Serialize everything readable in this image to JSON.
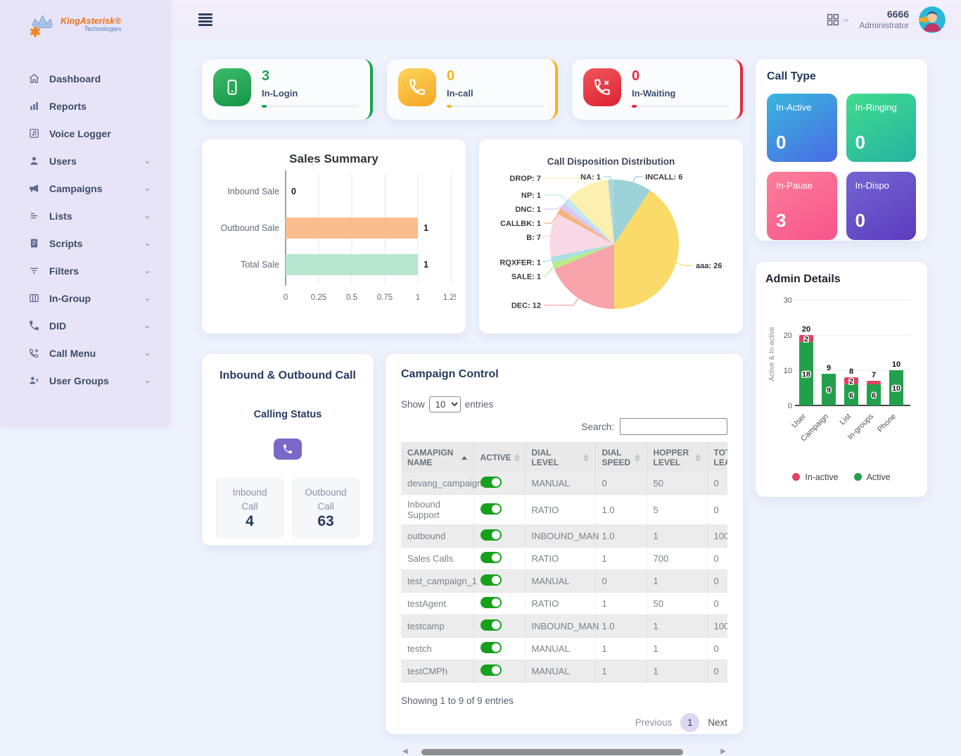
{
  "brand": {
    "name": "KingAsterisk®",
    "sub": "Technologies"
  },
  "topbar": {
    "user_number": "6666",
    "user_role": "Administrator"
  },
  "sidebar": {
    "items": [
      {
        "label": "Dashboard",
        "icon": "home",
        "has_submenu": false
      },
      {
        "label": "Reports",
        "icon": "reports",
        "has_submenu": false
      },
      {
        "label": "Voice Logger",
        "icon": "voice",
        "has_submenu": false
      },
      {
        "label": "Users",
        "icon": "user",
        "has_submenu": true
      },
      {
        "label": "Campaigns",
        "icon": "megaphone",
        "has_submenu": true
      },
      {
        "label": "Lists",
        "icon": "lists",
        "has_submenu": true
      },
      {
        "label": "Scripts",
        "icon": "script",
        "has_submenu": true
      },
      {
        "label": "Filters",
        "icon": "filter",
        "has_submenu": true
      },
      {
        "label": "In-Group",
        "icon": "columns",
        "has_submenu": true
      },
      {
        "label": "DID",
        "icon": "phone",
        "has_submenu": true
      },
      {
        "label": "Call Menu",
        "icon": "phone-out",
        "has_submenu": true
      },
      {
        "label": "User Groups",
        "icon": "user-group",
        "has_submenu": true
      }
    ]
  },
  "stat_cards": [
    {
      "label": "In-Login",
      "value": "3",
      "accent": "#1aa34c",
      "grad_from": "#3dbb6a",
      "grad_to": "#149647",
      "icon": "mobile"
    },
    {
      "label": "In-call",
      "value": "0",
      "accent": "#f2b51e",
      "grad_from": "#fdd45a",
      "grad_to": "#f6a623",
      "icon": "handset"
    },
    {
      "label": "In-Waiting",
      "value": "0",
      "accent": "#e02b3f",
      "grad_from": "#f0545c",
      "grad_to": "#dc2430",
      "icon": "handset-x"
    }
  ],
  "call_type": {
    "title": "Call Type",
    "tiles": [
      {
        "label": "In-Active",
        "value": "0",
        "from": "#38b7dd",
        "to": "#4a6be4"
      },
      {
        "label": "In-Ringing",
        "value": "0",
        "from": "#3fdc8d",
        "to": "#27b2a2"
      },
      {
        "label": "In-Pause",
        "value": "3",
        "from": "#fd7f9a",
        "to": "#f8538b"
      },
      {
        "label": "In-Dispo",
        "value": "0",
        "from": "#7466d2",
        "to": "#5b3cbe"
      }
    ]
  },
  "inbound_outbound": {
    "title": "Inbound & Outbound Call",
    "subtitle": "Calling Status",
    "boxes": [
      {
        "label": "Inbound Call",
        "value": "4"
      },
      {
        "label": "Outbound Call",
        "value": "63"
      }
    ]
  },
  "campaign_control": {
    "title": "Campaign Control",
    "show_label": "Show",
    "page_size": "10",
    "entries_label": "entries",
    "search_label": "Search:",
    "search_value": "",
    "columns": [
      {
        "label": "CAMAPIGN NAME",
        "sorted": "asc"
      },
      {
        "label": "ACTIVE",
        "sorted": "none"
      },
      {
        "label": "DIAL LEVEL",
        "sorted": "none"
      },
      {
        "label": "DIAL SPEED",
        "sorted": "none"
      },
      {
        "label": "HOPPER LEVEL",
        "sorted": "none"
      },
      {
        "label": "TOT LEA",
        "sorted": "none"
      }
    ],
    "rows": [
      {
        "name": "devang_campaign",
        "active": true,
        "dial_level": "MANUAL",
        "dial_speed": "0",
        "hopper_level": "50",
        "total_leads": "0"
      },
      {
        "name": "Inbound Support",
        "active": true,
        "dial_level": "RATIO",
        "dial_speed": "1.0",
        "hopper_level": "5",
        "total_leads": "0"
      },
      {
        "name": "outbound",
        "active": true,
        "dial_level": "INBOUND_MAN",
        "dial_speed": "1.0",
        "hopper_level": "1",
        "total_leads": "100"
      },
      {
        "name": "Sales Calls",
        "active": true,
        "dial_level": "RATIO",
        "dial_speed": "1",
        "hopper_level": "700",
        "total_leads": "0"
      },
      {
        "name": "test_campaign_1",
        "active": true,
        "dial_level": "MANUAL",
        "dial_speed": "0",
        "hopper_level": "1",
        "total_leads": "0"
      },
      {
        "name": "testAgent",
        "active": true,
        "dial_level": "RATIO",
        "dial_speed": "1",
        "hopper_level": "50",
        "total_leads": "0"
      },
      {
        "name": "testcamp",
        "active": true,
        "dial_level": "INBOUND_MAN",
        "dial_speed": "1.0",
        "hopper_level": "1",
        "total_leads": "100"
      },
      {
        "name": "testch",
        "active": true,
        "dial_level": "MANUAL",
        "dial_speed": "1",
        "hopper_level": "1",
        "total_leads": "0"
      },
      {
        "name": "testCMPh",
        "active": true,
        "dial_level": "MANUAL",
        "dial_speed": "1",
        "hopper_level": "1",
        "total_leads": "0"
      }
    ],
    "footer_text": "Showing 1 to 9 of 9 entries",
    "pagination": {
      "previous": "Previous",
      "current": "1",
      "next": "Next"
    }
  },
  "chart_data": [
    {
      "type": "bar",
      "orientation": "horizontal",
      "title": "Sales Summary",
      "categories": [
        "Inbound Sale",
        "Outbound Sale",
        "Total Sale"
      ],
      "values": [
        0,
        1,
        1
      ],
      "bar_colors": [
        "#f9bd90",
        "#f9bd90",
        "#b7e7cf"
      ],
      "data_labels": [
        "0",
        "1",
        "1"
      ],
      "xticks": [
        0,
        0.25,
        0.5,
        0.75,
        1,
        1.25
      ],
      "xlim": [
        0,
        1.25
      ],
      "grid": true
    },
    {
      "type": "pie",
      "title": "Call Disposition Distribution",
      "labels": [
        "NA",
        "INCALL",
        "aaa",
        "DEC",
        "SALE",
        "RQXFER",
        "B",
        "CALLBK",
        "DNC",
        "NP",
        "DROP"
      ],
      "values": [
        1,
        6,
        26,
        12,
        1,
        1,
        7,
        1,
        1,
        1,
        7
      ],
      "colors": [
        "#a9d7da",
        "#9bd2d8",
        "#fada69",
        "#f9a3ab",
        "#b8ec85",
        "#a8dfe4",
        "#fad9e6",
        "#f4b57f",
        "#dcc7f2",
        "#bfe8f2",
        "#fbf0b0"
      ],
      "start_angle_deg": -5.625
    },
    {
      "type": "bar",
      "subtype": "stacked",
      "title": "Admin Details",
      "ylabel": "Active & In-active",
      "categories": [
        "User",
        "Campaign",
        "List",
        "In-groups",
        "Phone"
      ],
      "series": [
        {
          "name": "Active",
          "color": "#22a04b",
          "values": [
            18,
            9,
            6,
            6,
            10
          ]
        },
        {
          "name": "In-active",
          "color": "#e0425f",
          "values": [
            2,
            0,
            2,
            1,
            0
          ]
        }
      ],
      "totals": [
        20,
        9,
        8,
        7,
        10
      ],
      "yticks": [
        0,
        10,
        20,
        30
      ],
      "ylim": [
        0,
        30
      ],
      "legend": [
        "In-active",
        "Active"
      ],
      "legend_position": "bottom"
    }
  ]
}
